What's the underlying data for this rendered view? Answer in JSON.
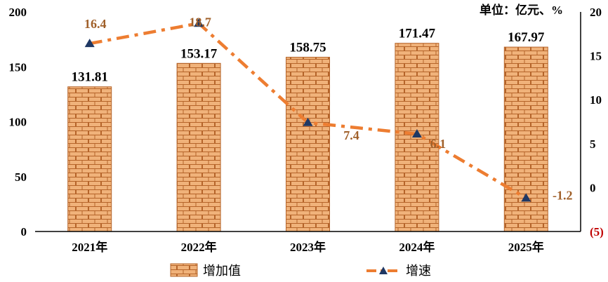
{
  "chart_data": {
    "type": "bar",
    "categories": [
      "2021年",
      "2022年",
      "2023年",
      "2024年",
      "2025年"
    ],
    "series": [
      {
        "name": "增加值",
        "type": "bar",
        "axis": "left",
        "values": [
          131.81,
          153.17,
          158.75,
          171.47,
          167.97
        ],
        "labels": [
          "131.81",
          "153.17",
          "158.75",
          "171.47",
          "167.97"
        ]
      },
      {
        "name": "增速",
        "type": "line",
        "axis": "right",
        "values": [
          16.4,
          18.7,
          7.4,
          6.1,
          -1.2
        ],
        "labels": [
          "16.4",
          "18.7",
          "7.4",
          "6.1",
          "-1.2"
        ]
      }
    ],
    "y_left": {
      "ticks": [
        "0",
        "50",
        "100",
        "150",
        "200"
      ],
      "ylim": [
        0,
        200
      ]
    },
    "y_right": {
      "ticks": [
        "(5)",
        "0",
        "5",
        "10",
        "15",
        "20"
      ],
      "ylim": [
        -5,
        20
      ]
    },
    "unit_label": "单位：亿元、%",
    "legend_position": "bottom",
    "grid": false,
    "colors": {
      "bar_fill": "#f0b27a",
      "bar_mortar": "#b5642a",
      "line": "#ed7d31",
      "marker": "#1f3864",
      "line_label": "#a0602a",
      "negative_tick": "#c00000"
    }
  }
}
